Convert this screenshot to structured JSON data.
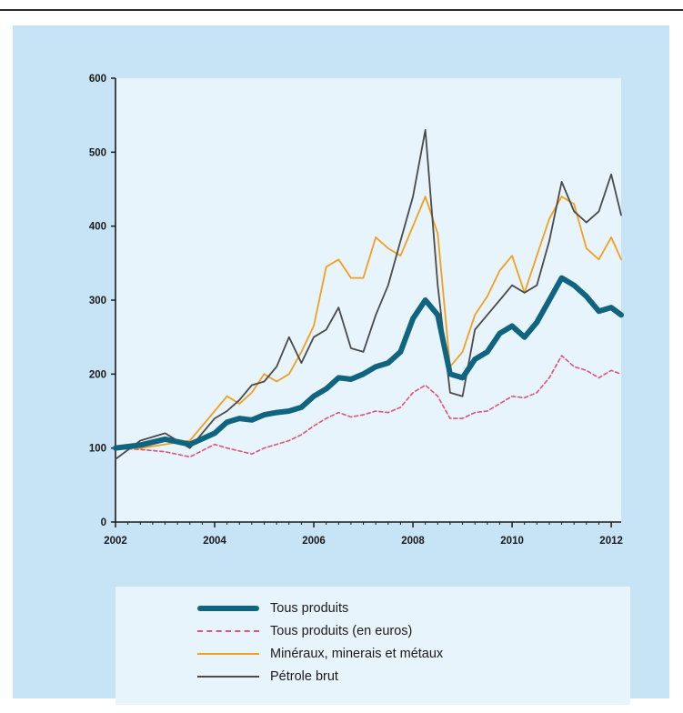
{
  "chart_data": {
    "type": "line",
    "title": "",
    "xlabel": "",
    "ylabel": "",
    "xlim": [
      2002,
      2012.2
    ],
    "ylim": [
      0,
      600
    ],
    "xticks": [
      2002,
      2004,
      2006,
      2008,
      2010,
      2012
    ],
    "xtick_labels": [
      "2002",
      "2004",
      "2006",
      "2008",
      "2010",
      "2012"
    ],
    "yticks": [
      0,
      100,
      200,
      300,
      400,
      500,
      600
    ],
    "ytick_labels": [
      "0",
      "100",
      "200",
      "300",
      "400",
      "500",
      "600"
    ],
    "grid": false,
    "legend_position": "bottom",
    "x": [
      2002.0,
      2002.5,
      2003.0,
      2003.5,
      2004.0,
      2004.25,
      2004.5,
      2004.75,
      2005.0,
      2005.25,
      2005.5,
      2005.75,
      2006.0,
      2006.25,
      2006.5,
      2006.75,
      2007.0,
      2007.25,
      2007.5,
      2007.75,
      2008.0,
      2008.25,
      2008.5,
      2008.75,
      2009.0,
      2009.25,
      2009.5,
      2009.75,
      2010.0,
      2010.25,
      2010.5,
      2010.75,
      2011.0,
      2011.25,
      2011.5,
      2011.75,
      2012.0,
      2012.2
    ],
    "series": [
      {
        "name": "Tous produits",
        "color": "#0f6480",
        "style": "thick",
        "values": [
          100,
          104,
          112,
          105,
          120,
          135,
          140,
          138,
          145,
          148,
          150,
          155,
          170,
          180,
          195,
          193,
          200,
          210,
          215,
          230,
          275,
          300,
          280,
          200,
          195,
          220,
          230,
          255,
          265,
          250,
          270,
          300,
          330,
          320,
          305,
          285,
          290,
          280
        ]
      },
      {
        "name": "Tous produits (en euros)",
        "color": "#d9557a",
        "style": "dashed",
        "values": [
          100,
          98,
          95,
          88,
          105,
          100,
          96,
          92,
          100,
          105,
          110,
          118,
          130,
          140,
          148,
          142,
          145,
          150,
          148,
          155,
          175,
          185,
          170,
          140,
          140,
          148,
          150,
          160,
          170,
          168,
          175,
          195,
          225,
          210,
          205,
          195,
          205,
          200
        ]
      },
      {
        "name": "Minéraux, minerais et métaux",
        "color": "#f0a020",
        "style": "solid",
        "values": [
          100,
          100,
          105,
          110,
          150,
          170,
          160,
          175,
          200,
          190,
          200,
          230,
          265,
          345,
          355,
          330,
          330,
          385,
          370,
          360,
          400,
          440,
          390,
          210,
          230,
          280,
          305,
          340,
          360,
          310,
          360,
          410,
          440,
          430,
          370,
          355,
          385,
          355
        ]
      },
      {
        "name": "Pétrole brut",
        "color": "#4a4a4a",
        "style": "solid",
        "values": [
          85,
          110,
          120,
          100,
          140,
          150,
          165,
          185,
          190,
          210,
          250,
          215,
          250,
          260,
          290,
          235,
          230,
          280,
          320,
          380,
          440,
          530,
          320,
          175,
          170,
          260,
          280,
          300,
          320,
          310,
          320,
          380,
          460,
          420,
          405,
          420,
          470,
          415
        ]
      }
    ]
  }
}
